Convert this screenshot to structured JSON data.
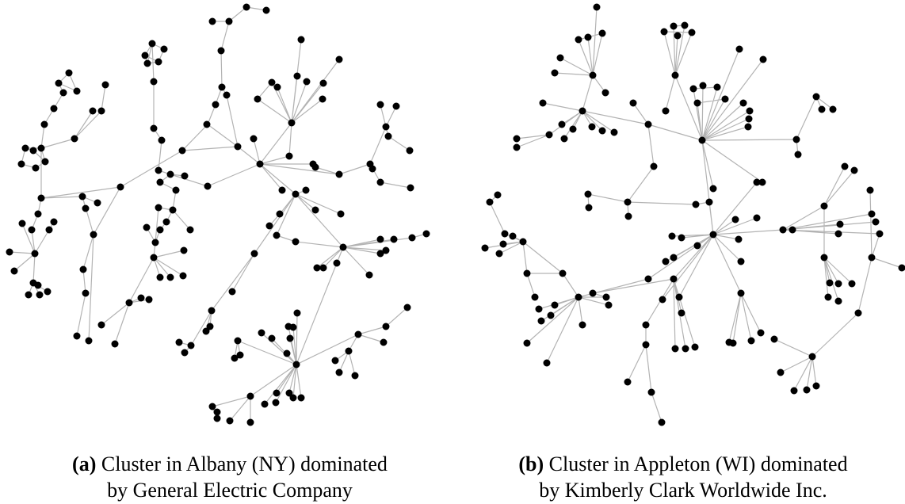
{
  "figures": [
    {
      "label": "(a)",
      "caption_lines": [
        "Cluster in Albany (NY) dominated",
        "by General Electric Company"
      ]
    },
    {
      "label": "(b)",
      "caption_lines": [
        "Cluster in Appleton (WI) dominated",
        "by Kimberly Clark Worldwide Inc."
      ]
    }
  ]
}
